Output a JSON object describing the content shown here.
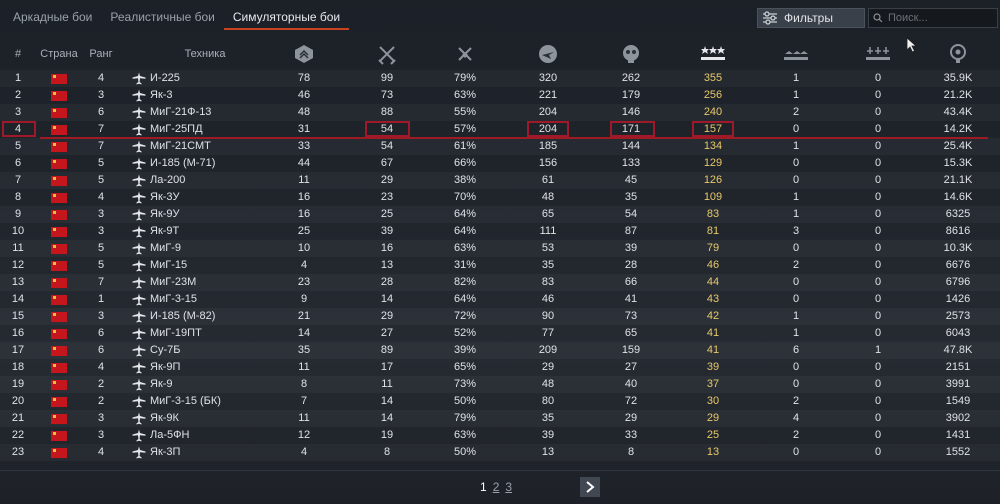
{
  "tabs": [
    "Аркадные бои",
    "Реалистичные бои",
    "Симуляторные бои"
  ],
  "active_tab": 2,
  "filters_label": "Фильтры",
  "search_placeholder": "Поиск...",
  "header": {
    "num": "#",
    "country": "Страна",
    "rank": "Ранг",
    "vehicle": "Техника"
  },
  "stat_icons": [
    "battles-icon",
    "victories-icon",
    "win-rate-icon",
    "respawns-icon",
    "deaths-icon",
    "air-kills-icon",
    "ground-kills-icon",
    "naval-kills-icon",
    "score-icon"
  ],
  "colors": {
    "accent": "#c8431f",
    "highlight": "#a0192a",
    "gold": "#e8c96a",
    "flag": "#c4161c"
  },
  "rows": [
    {
      "n": "1",
      "rank": "4",
      "name": "И-225",
      "v": [
        "78",
        "99",
        "79%",
        "320",
        "262",
        "355",
        "1",
        "0",
        "35.9K"
      ]
    },
    {
      "n": "2",
      "rank": "3",
      "name": "Як-3",
      "v": [
        "46",
        "73",
        "63%",
        "221",
        "179",
        "256",
        "1",
        "0",
        "21.2K"
      ]
    },
    {
      "n": "3",
      "rank": "6",
      "name": "МиГ-21Ф-13",
      "v": [
        "48",
        "88",
        "55%",
        "204",
        "146",
        "240",
        "2",
        "0",
        "43.4K"
      ]
    },
    {
      "n": "4",
      "rank": "7",
      "name": "МиГ-25ПД",
      "v": [
        "31",
        "54",
        "57%",
        "204",
        "171",
        "157",
        "0",
        "0",
        "14.2K"
      ]
    },
    {
      "n": "5",
      "rank": "7",
      "name": "МиГ-21СМТ",
      "v": [
        "33",
        "54",
        "61%",
        "185",
        "144",
        "134",
        "1",
        "0",
        "25.4K"
      ]
    },
    {
      "n": "6",
      "rank": "5",
      "name": "И-185 (М-71)",
      "v": [
        "44",
        "67",
        "66%",
        "156",
        "133",
        "129",
        "0",
        "0",
        "15.3K"
      ]
    },
    {
      "n": "7",
      "rank": "5",
      "name": "Ла-200",
      "v": [
        "11",
        "29",
        "38%",
        "61",
        "45",
        "126",
        "0",
        "0",
        "21.1K"
      ]
    },
    {
      "n": "8",
      "rank": "4",
      "name": "Як-3У",
      "v": [
        "16",
        "23",
        "70%",
        "48",
        "35",
        "109",
        "1",
        "0",
        "14.6K"
      ]
    },
    {
      "n": "9",
      "rank": "3",
      "name": "Як-9У",
      "v": [
        "16",
        "25",
        "64%",
        "65",
        "54",
        "83",
        "1",
        "0",
        "6325"
      ]
    },
    {
      "n": "10",
      "rank": "3",
      "name": "Як-9Т",
      "v": [
        "25",
        "39",
        "64%",
        "111",
        "87",
        "81",
        "3",
        "0",
        "8616"
      ]
    },
    {
      "n": "11",
      "rank": "5",
      "name": "МиГ-9",
      "v": [
        "10",
        "16",
        "63%",
        "53",
        "39",
        "79",
        "0",
        "0",
        "10.3K"
      ]
    },
    {
      "n": "12",
      "rank": "5",
      "name": "МиГ-15",
      "v": [
        "4",
        "13",
        "31%",
        "35",
        "28",
        "46",
        "2",
        "0",
        "6676"
      ]
    },
    {
      "n": "13",
      "rank": "7",
      "name": "МиГ-23М",
      "v": [
        "23",
        "28",
        "82%",
        "83",
        "66",
        "44",
        "0",
        "0",
        "6796"
      ]
    },
    {
      "n": "14",
      "rank": "1",
      "name": "МиГ-3-15",
      "v": [
        "9",
        "14",
        "64%",
        "46",
        "41",
        "43",
        "0",
        "0",
        "1426"
      ]
    },
    {
      "n": "15",
      "rank": "3",
      "name": "И-185 (М-82)",
      "v": [
        "21",
        "29",
        "72%",
        "90",
        "73",
        "42",
        "1",
        "0",
        "2573"
      ]
    },
    {
      "n": "16",
      "rank": "6",
      "name": "МиГ-19ПТ",
      "v": [
        "14",
        "27",
        "52%",
        "77",
        "65",
        "41",
        "1",
        "0",
        "6043"
      ]
    },
    {
      "n": "17",
      "rank": "6",
      "name": "Су-7Б",
      "v": [
        "35",
        "89",
        "39%",
        "209",
        "159",
        "41",
        "6",
        "1",
        "47.8K"
      ]
    },
    {
      "n": "18",
      "rank": "4",
      "name": "Як-9П",
      "v": [
        "11",
        "17",
        "65%",
        "29",
        "27",
        "39",
        "0",
        "0",
        "2151"
      ]
    },
    {
      "n": "19",
      "rank": "2",
      "name": "Як-9",
      "v": [
        "8",
        "11",
        "73%",
        "48",
        "40",
        "37",
        "0",
        "0",
        "3991"
      ]
    },
    {
      "n": "20",
      "rank": "2",
      "name": "МиГ-3-15 (БК)",
      "v": [
        "7",
        "14",
        "50%",
        "80",
        "72",
        "30",
        "2",
        "0",
        "1549"
      ]
    },
    {
      "n": "21",
      "rank": "3",
      "name": "Як-9К",
      "v": [
        "11",
        "14",
        "79%",
        "35",
        "29",
        "29",
        "4",
        "0",
        "3902"
      ]
    },
    {
      "n": "22",
      "rank": "3",
      "name": "Ла-5ФН",
      "v": [
        "12",
        "19",
        "63%",
        "39",
        "33",
        "25",
        "2",
        "0",
        "1431"
      ]
    },
    {
      "n": "23",
      "rank": "4",
      "name": "Як-3П",
      "v": [
        "4",
        "8",
        "50%",
        "13",
        "8",
        "13",
        "0",
        "0",
        "1552"
      ]
    }
  ],
  "pages": [
    "1",
    "2",
    "3"
  ],
  "current_page": "1"
}
